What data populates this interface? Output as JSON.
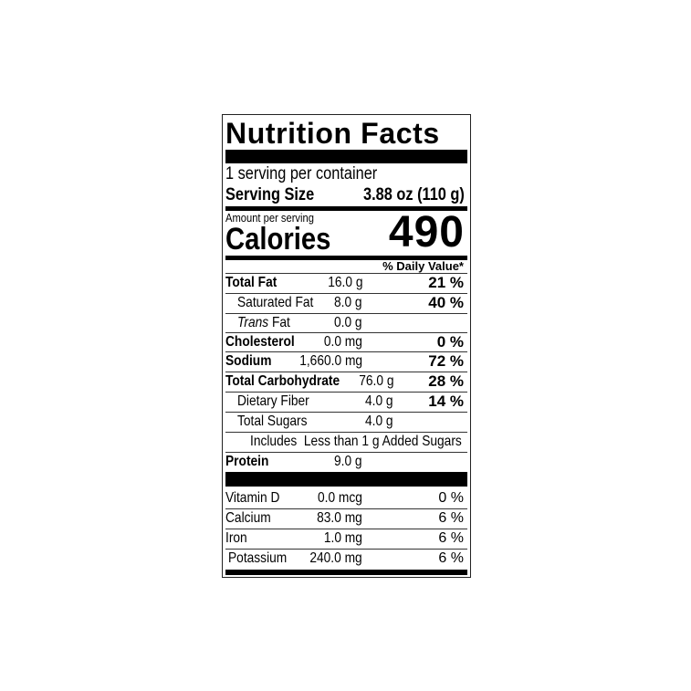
{
  "title": "Nutrition Facts",
  "servings": "1 serving per container",
  "serving_size_label": "Serving Size",
  "serving_size_value": "3.88 oz (110 g)",
  "amount_per_serving": "Amount per serving",
  "calories_label": "Calories",
  "calories_value": "490",
  "daily_value_header": "% Daily Value*",
  "nutrients": [
    {
      "name": "Total Fat",
      "amount": "16.0 g",
      "dv": "21 %"
    },
    {
      "name": "Saturated Fat",
      "amount": "8.0 g",
      "dv": "40 %"
    },
    {
      "name_italic": "Trans",
      "name": "Fat",
      "amount": "0.0 g"
    },
    {
      "name": "Cholesterol",
      "amount": "0.0 mg",
      "dv": "0 %"
    },
    {
      "name": "Sodium",
      "amount": "1,660.0 mg",
      "dv": "72 %"
    },
    {
      "name": "Total Carbohydrate",
      "amount": "76.0 g",
      "dv": "28 %"
    },
    {
      "name": "Dietary Fiber",
      "amount": "4.0 g",
      "dv": "14 %"
    },
    {
      "name": "Total Sugars",
      "amount": "4.0 g"
    },
    {
      "name": "Includes  Less than 1 g Added Sugars"
    },
    {
      "name": "Protein",
      "amount": "9.0 g"
    }
  ],
  "vitamins": [
    {
      "name": "Vitamin D",
      "amount": "0.0 mcg",
      "dv": "0 %"
    },
    {
      "name": "Calcium",
      "amount": "83.0 mg",
      "dv": "6 %"
    },
    {
      "name": "Iron",
      "amount": "1.0 mg",
      "dv": "6 %"
    },
    {
      "name": "Potassium",
      "amount": "240.0 mg",
      "dv": "6 %"
    }
  ]
}
